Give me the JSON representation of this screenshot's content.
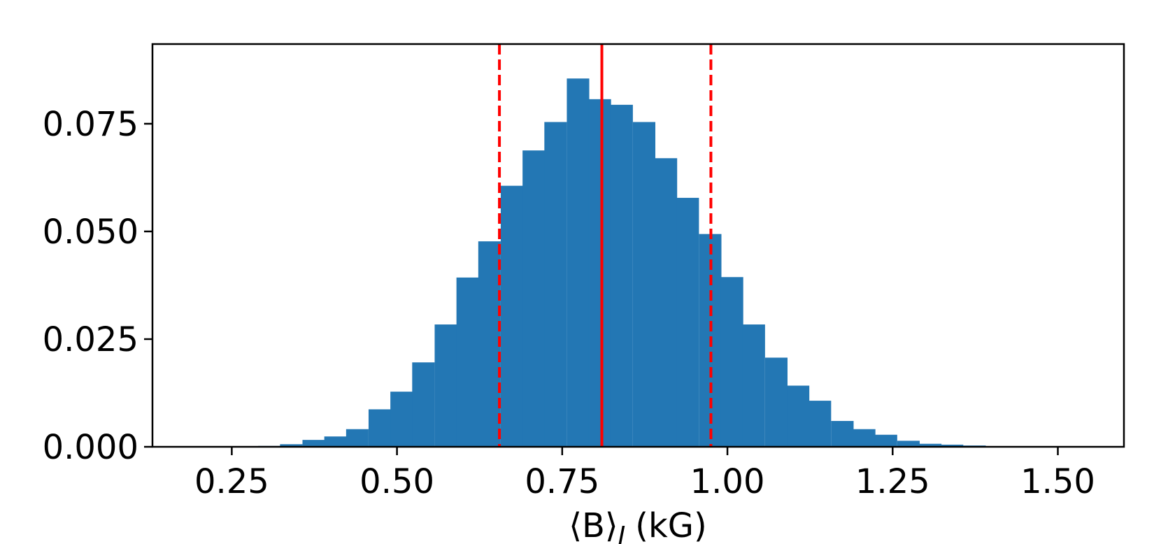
{
  "chart_data": {
    "type": "bar",
    "subtype": "histogram",
    "title": "",
    "xlabel": "⟨B⟩",
    "xlabel_subscript": "I",
    "xlabel_unit": "(kG)",
    "ylabel": "",
    "xlim": [
      0.13,
      1.6
    ],
    "ylim": [
      0.0,
      0.0935
    ],
    "grid": false,
    "bin_width": 0.0333,
    "bins": [
      {
        "x0": 0.29,
        "value": 0.0002
      },
      {
        "x0": 0.323,
        "value": 0.0006
      },
      {
        "x0": 0.357,
        "value": 0.0016
      },
      {
        "x0": 0.39,
        "value": 0.0024
      },
      {
        "x0": 0.423,
        "value": 0.0041
      },
      {
        "x0": 0.457,
        "value": 0.0087
      },
      {
        "x0": 0.49,
        "value": 0.0128
      },
      {
        "x0": 0.523,
        "value": 0.0196
      },
      {
        "x0": 0.557,
        "value": 0.0284
      },
      {
        "x0": 0.59,
        "value": 0.0393
      },
      {
        "x0": 0.623,
        "value": 0.0477
      },
      {
        "x0": 0.657,
        "value": 0.0606
      },
      {
        "x0": 0.69,
        "value": 0.0688
      },
      {
        "x0": 0.723,
        "value": 0.0754
      },
      {
        "x0": 0.757,
        "value": 0.0855
      },
      {
        "x0": 0.79,
        "value": 0.0807
      },
      {
        "x0": 0.823,
        "value": 0.0794
      },
      {
        "x0": 0.857,
        "value": 0.0754
      },
      {
        "x0": 0.89,
        "value": 0.067
      },
      {
        "x0": 0.923,
        "value": 0.0578
      },
      {
        "x0": 0.957,
        "value": 0.0494
      },
      {
        "x0": 0.99,
        "value": 0.0394
      },
      {
        "x0": 1.023,
        "value": 0.0284
      },
      {
        "x0": 1.057,
        "value": 0.0207
      },
      {
        "x0": 1.09,
        "value": 0.0142
      },
      {
        "x0": 1.123,
        "value": 0.0107
      },
      {
        "x0": 1.157,
        "value": 0.006
      },
      {
        "x0": 1.19,
        "value": 0.0041
      },
      {
        "x0": 1.223,
        "value": 0.0028
      },
      {
        "x0": 1.257,
        "value": 0.0014
      },
      {
        "x0": 1.29,
        "value": 0.0007
      },
      {
        "x0": 1.323,
        "value": 0.0005
      },
      {
        "x0": 1.357,
        "value": 0.0003
      }
    ],
    "xticks": [
      {
        "value": 0.25,
        "label": "0.25"
      },
      {
        "value": 0.5,
        "label": "0.50"
      },
      {
        "value": 0.75,
        "label": "0.75"
      },
      {
        "value": 1.0,
        "label": "1.00"
      },
      {
        "value": 1.25,
        "label": "1.25"
      },
      {
        "value": 1.5,
        "label": "1.50"
      }
    ],
    "yticks": [
      {
        "value": 0.0,
        "label": "0.000"
      },
      {
        "value": 0.025,
        "label": "0.025"
      },
      {
        "value": 0.05,
        "label": "0.050"
      },
      {
        "value": 0.075,
        "label": "0.075"
      }
    ],
    "vlines": [
      {
        "x": 0.81,
        "style": "solid",
        "role": "median"
      },
      {
        "x": 0.655,
        "style": "dashed",
        "role": "lower-bound"
      },
      {
        "x": 0.975,
        "style": "dashed",
        "role": "upper-bound"
      }
    ],
    "colors": {
      "bars": "#2377b4",
      "lines": "#ff0000",
      "axes": "#000000"
    }
  }
}
